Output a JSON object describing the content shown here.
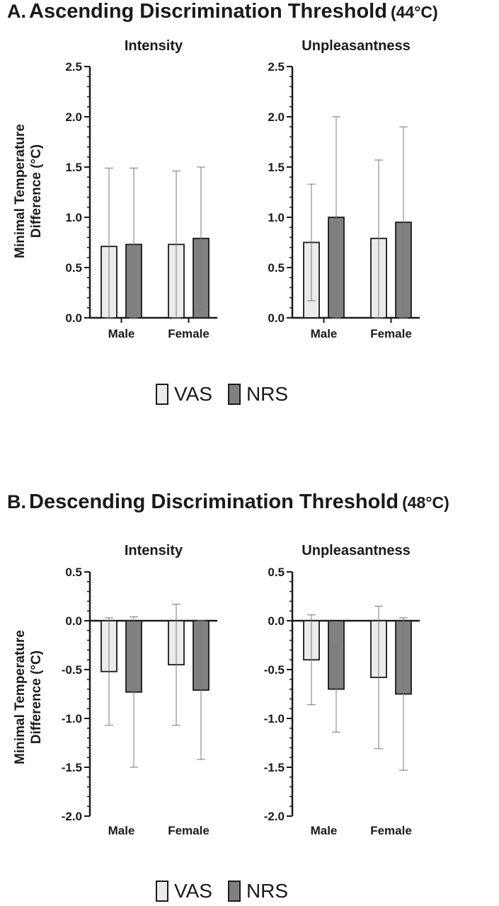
{
  "panels": [
    {
      "letter": "A.",
      "name": "Ascending Discrimination Threshold",
      "temp": "(44°C)"
    },
    {
      "letter": "B.",
      "name": "Descending Discrimination Threshold",
      "temp": "(48°C)"
    }
  ],
  "legend": [
    {
      "label": "VAS",
      "color": "#ebebeb"
    },
    {
      "label": "NRS",
      "color": "#808080"
    }
  ],
  "chart_data": [
    {
      "type": "bar",
      "title": "Intensity",
      "ylabel": "Minimal Temperature Difference (°C)",
      "categories": [
        "Male",
        "Female"
      ],
      "ylim": [
        0,
        2.5
      ],
      "yticks": [
        "0.0",
        "0.5",
        "1.0",
        "1.5",
        "2.0",
        "2.5"
      ],
      "series": [
        {
          "name": "VAS",
          "values": [
            0.71,
            0.73
          ],
          "err_high": [
            1.49,
            1.46
          ],
          "err_low": [
            0.0,
            0.0
          ]
        },
        {
          "name": "NRS",
          "values": [
            0.73,
            0.79
          ],
          "err_high": [
            1.49,
            1.5
          ],
          "err_low": [
            0.0,
            0.08
          ]
        }
      ]
    },
    {
      "type": "bar",
      "title": "Unpleasantness",
      "ylabel": "",
      "categories": [
        "Male",
        "Female"
      ],
      "ylim": [
        0,
        2.5
      ],
      "yticks": [
        "0.0",
        "0.5",
        "1.0",
        "1.5",
        "2.0",
        "2.5"
      ],
      "series": [
        {
          "name": "VAS",
          "values": [
            0.75,
            0.79
          ],
          "err_high": [
            1.33,
            1.57
          ],
          "err_low": [
            0.17,
            0.0
          ]
        },
        {
          "name": "NRS",
          "values": [
            1.0,
            0.95
          ],
          "err_high": [
            2.0,
            1.9
          ],
          "err_low": [
            0.0,
            0.0
          ]
        }
      ]
    },
    {
      "type": "bar",
      "title": "Intensity",
      "ylabel": "Minimal Temperature Difference (°C)",
      "categories": [
        "Male",
        "Female"
      ],
      "ylim": [
        -2.0,
        0.5
      ],
      "yticks": [
        "-2.0",
        "-1.5",
        "-1.0",
        "-0.5",
        "0.0",
        "0.5"
      ],
      "series": [
        {
          "name": "VAS",
          "values": [
            -0.52,
            -0.45
          ],
          "err_high": [
            0.03,
            0.17
          ],
          "err_low": [
            -1.07,
            -1.07
          ]
        },
        {
          "name": "NRS",
          "values": [
            -0.73,
            -0.71
          ],
          "err_high": [
            0.04,
            0.0
          ],
          "err_low": [
            -1.5,
            -1.42
          ]
        }
      ]
    },
    {
      "type": "bar",
      "title": "Unpleasantness",
      "ylabel": "",
      "categories": [
        "Male",
        "Female"
      ],
      "ylim": [
        -2.0,
        0.5
      ],
      "yticks": [
        "-2.0",
        "-1.5",
        "-1.0",
        "-0.5",
        "0.0",
        "0.5"
      ],
      "series": [
        {
          "name": "VAS",
          "values": [
            -0.4,
            -0.58
          ],
          "err_high": [
            0.06,
            0.15
          ],
          "err_low": [
            -0.86,
            -1.31
          ]
        },
        {
          "name": "NRS",
          "values": [
            -0.7,
            -0.75
          ],
          "err_high": [
            -0.26,
            0.03
          ],
          "err_low": [
            -1.14,
            -1.53
          ]
        }
      ]
    }
  ]
}
